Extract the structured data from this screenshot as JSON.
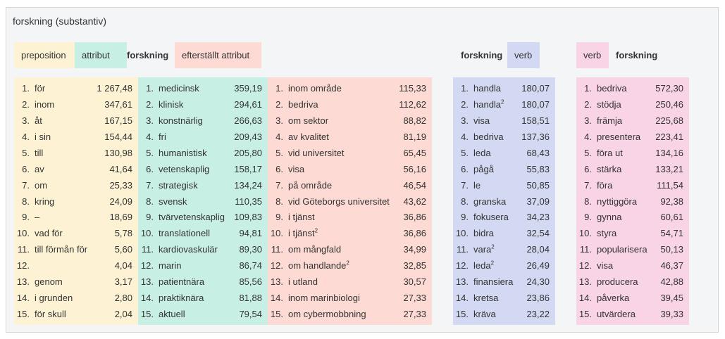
{
  "title": "forskning (substantiv)",
  "headers": [
    "preposition",
    "attribut",
    "forskning",
    "efterställt attribut",
    "forskning",
    "verb",
    "verb",
    "forskning"
  ],
  "columns": [
    {
      "rows": [
        {
          "rank": "1.",
          "word": "för",
          "score": "1 267,48"
        },
        {
          "rank": "2.",
          "word": "inom",
          "score": "347,61"
        },
        {
          "rank": "3.",
          "word": "åt",
          "score": "167,15"
        },
        {
          "rank": "4.",
          "word": "i sin",
          "score": "154,44"
        },
        {
          "rank": "5.",
          "word": "till",
          "score": "130,98"
        },
        {
          "rank": "6.",
          "word": "av",
          "score": "41,64"
        },
        {
          "rank": "7.",
          "word": "om",
          "score": "25,33"
        },
        {
          "rank": "8.",
          "word": "kring",
          "score": "24,09"
        },
        {
          "rank": "9.",
          "word": "–",
          "score": "18,69"
        },
        {
          "rank": "10.",
          "word": "vad för",
          "score": "5,78"
        },
        {
          "rank": "11.",
          "word": "till förmån för",
          "score": "5,60"
        },
        {
          "rank": "12.",
          "score": "4,04"
        },
        {
          "rank": "13.",
          "word": "genom",
          "score": "3,17"
        },
        {
          "rank": "14.",
          "word": "i grunden",
          "score": "2,80"
        },
        {
          "rank": "15.",
          "word": "för skull",
          "score": "2,04"
        }
      ]
    },
    {
      "rows": [
        {
          "rank": "1.",
          "word": "medicinsk",
          "score": "359,19"
        },
        {
          "rank": "2.",
          "word": "klinisk",
          "score": "294,61"
        },
        {
          "rank": "3.",
          "word": "konstnärlig",
          "score": "266,63"
        },
        {
          "rank": "4.",
          "word": "fri",
          "score": "209,43"
        },
        {
          "rank": "5.",
          "word": "humanistisk",
          "score": "205,80"
        },
        {
          "rank": "6.",
          "word": "vetenskaplig",
          "score": "158,17"
        },
        {
          "rank": "7.",
          "word": "strategisk",
          "score": "134,24"
        },
        {
          "rank": "8.",
          "word": "svensk",
          "score": "110,35"
        },
        {
          "rank": "9.",
          "word": "tvärvetenskaplig",
          "score": "109,83"
        },
        {
          "rank": "10.",
          "word": "translationell",
          "score": "94,81"
        },
        {
          "rank": "11.",
          "word": "kardiovaskulär",
          "score": "89,30"
        },
        {
          "rank": "12.",
          "word": "marin",
          "score": "86,74"
        },
        {
          "rank": "13.",
          "word": "patientnära",
          "score": "85,56"
        },
        {
          "rank": "14.",
          "word": "praktiknära",
          "score": "81,88"
        },
        {
          "rank": "15.",
          "word": "aktuell",
          "score": "79,54"
        }
      ]
    },
    {
      "rows": [
        {
          "rank": "1.",
          "word": "inom område",
          "score": "115,33"
        },
        {
          "rank": "2.",
          "word": "bedriva",
          "score": "112,62"
        },
        {
          "rank": "3.",
          "word": "om sektor",
          "score": "88,82"
        },
        {
          "rank": "4.",
          "word": "av kvalitet",
          "score": "81,19"
        },
        {
          "rank": "5.",
          "word": "vid universitet",
          "score": "65,45"
        },
        {
          "rank": "6.",
          "word": "visa",
          "score": "56,16"
        },
        {
          "rank": "7.",
          "word": "på område",
          "score": "46,54"
        },
        {
          "rank": "8.",
          "word": "vid Göteborgs universitet",
          "score": "43,62"
        },
        {
          "rank": "9.",
          "word": "i tjänst",
          "score": "36,86"
        },
        {
          "rank": "10.",
          "word": "i tjänst",
          "sup": "2",
          "score": "36,86"
        },
        {
          "rank": "11.",
          "word": "om mångfald",
          "score": "34,99"
        },
        {
          "rank": "12.",
          "word": "om handlande",
          "sup": "2",
          "score": "32,85"
        },
        {
          "rank": "13.",
          "word": "i utland",
          "score": "30,57"
        },
        {
          "rank": "14.",
          "word": "inom marinbiologi",
          "score": "27,33"
        },
        {
          "rank": "15.",
          "word": "om cybermobbning",
          "score": "27,33"
        }
      ]
    },
    {
      "rows": [
        {
          "rank": "1.",
          "word": "handla",
          "score": "180,07"
        },
        {
          "rank": "2.",
          "word": "handla",
          "sup": "2",
          "score": "180,07"
        },
        {
          "rank": "3.",
          "word": "visa",
          "score": "158,51"
        },
        {
          "rank": "4.",
          "word": "bedriva",
          "score": "137,36"
        },
        {
          "rank": "5.",
          "word": "leda",
          "score": "68,43"
        },
        {
          "rank": "6.",
          "word": "pågå",
          "score": "55,83"
        },
        {
          "rank": "7.",
          "word": "le",
          "score": "50,85"
        },
        {
          "rank": "8.",
          "word": "granska",
          "score": "37,09"
        },
        {
          "rank": "9.",
          "word": "fokusera",
          "score": "34,23"
        },
        {
          "rank": "10.",
          "word": "bidra",
          "score": "32,54"
        },
        {
          "rank": "11.",
          "word": "vara",
          "sup": "2",
          "score": "28,04"
        },
        {
          "rank": "12.",
          "word": "leda",
          "sup": "2",
          "score": "26,49"
        },
        {
          "rank": "13.",
          "word": "finansiera",
          "score": "24,30"
        },
        {
          "rank": "14.",
          "word": "kretsa",
          "score": "23,86"
        },
        {
          "rank": "15.",
          "word": "kräva",
          "score": "23,22"
        }
      ]
    },
    {
      "rows": [
        {
          "rank": "1.",
          "word": "bedriva",
          "score": "572,30"
        },
        {
          "rank": "2.",
          "word": "stödja",
          "score": "250,46"
        },
        {
          "rank": "3.",
          "word": "främja",
          "score": "225,68"
        },
        {
          "rank": "4.",
          "word": "presentera",
          "score": "223,41"
        },
        {
          "rank": "5.",
          "word": "föra ut",
          "score": "134,16"
        },
        {
          "rank": "6.",
          "word": "stärka",
          "score": "133,21"
        },
        {
          "rank": "7.",
          "word": "föra",
          "score": "111,54"
        },
        {
          "rank": "8.",
          "word": "nyttiggöra",
          "score": "92,38"
        },
        {
          "rank": "9.",
          "word": "gynna",
          "score": "60,61"
        },
        {
          "rank": "10.",
          "word": "styra",
          "score": "54,71"
        },
        {
          "rank": "11.",
          "word": "popularisera",
          "score": "50,13"
        },
        {
          "rank": "12.",
          "word": "visa",
          "score": "46,37"
        },
        {
          "rank": "13.",
          "word": "producera",
          "score": "42,88"
        },
        {
          "rank": "14.",
          "word": "påverka",
          "score": "39,45"
        },
        {
          "rank": "15.",
          "word": "utvärdera",
          "score": "39,33"
        }
      ]
    }
  ]
}
